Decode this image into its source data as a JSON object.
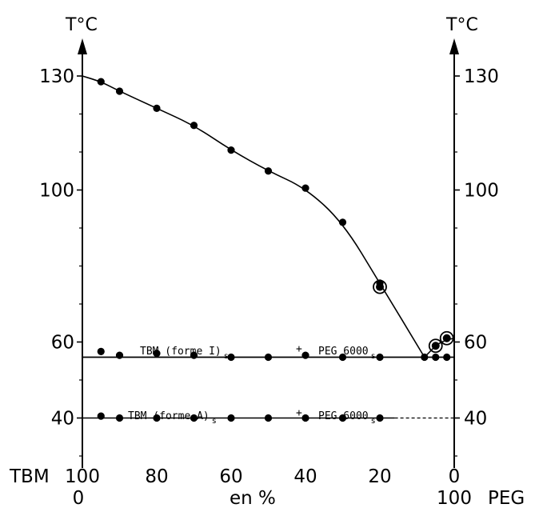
{
  "chart_data": {
    "type": "scatter",
    "title": "",
    "axes": {
      "left_title": "T°C",
      "right_title": "T°C",
      "ylim": [
        20,
        135
      ],
      "xlim": [
        0,
        100
      ],
      "y_ticks": [
        130,
        100,
        60,
        40
      ],
      "y_tick_labels": [
        "130",
        "100",
        "60",
        "40"
      ],
      "x_ticks_tbm": [
        100,
        80,
        60,
        40,
        20,
        0
      ],
      "x_tick_labels_top": [
        "100",
        "80",
        "60",
        "40",
        "20",
        "0"
      ],
      "x_tick_labels_bottom": [
        "0",
        "",
        "",
        "",
        "",
        "100"
      ],
      "x_label_left": "TBM",
      "x_label_center": "en %",
      "x_label_right": "PEG",
      "grid": false
    },
    "regions": [
      {
        "label": "TBM (forme I)",
        "sub": "s",
        "plus": "+",
        "label2": "PEG 6000",
        "sub2": "s",
        "x_peg": 38,
        "y": 48.5
      },
      {
        "label": "TBM (forme A)",
        "sub": "s",
        "plus": "+",
        "label2": "PEG 6000",
        "sub2": "s",
        "x_peg": 38,
        "y": 33.5
      }
    ],
    "series": [
      {
        "type": "liquidus",
        "points": [
          [
            5,
            128.5
          ],
          [
            10,
            126
          ],
          [
            20,
            121.5
          ],
          [
            30,
            117
          ],
          [
            40,
            110.5
          ],
          [
            50,
            105
          ],
          [
            60,
            100.5
          ],
          [
            70,
            91.5
          ],
          [
            80,
            75.5
          ],
          [
            92,
            56
          ],
          [
            95,
            56
          ],
          [
            98,
            56
          ]
        ]
      },
      {
        "type": "eutectic",
        "points": [
          [
            5,
            57.5
          ],
          [
            10,
            56.5
          ],
          [
            20,
            57
          ],
          [
            30,
            56.5
          ],
          [
            40,
            56
          ],
          [
            50,
            56
          ],
          [
            60,
            56.5
          ],
          [
            70,
            56
          ],
          [
            80,
            56
          ]
        ]
      },
      {
        "type": "transition",
        "points": [
          [
            5,
            40.5
          ],
          [
            10,
            40
          ],
          [
            20,
            40
          ],
          [
            30,
            40
          ],
          [
            40,
            40
          ],
          [
            50,
            40
          ],
          [
            60,
            40
          ],
          [
            70,
            40
          ],
          [
            80,
            40
          ]
        ]
      },
      {
        "type": "circled",
        "points": [
          [
            80,
            74.5
          ],
          [
            95,
            59
          ],
          [
            98,
            61
          ]
        ]
      }
    ]
  }
}
